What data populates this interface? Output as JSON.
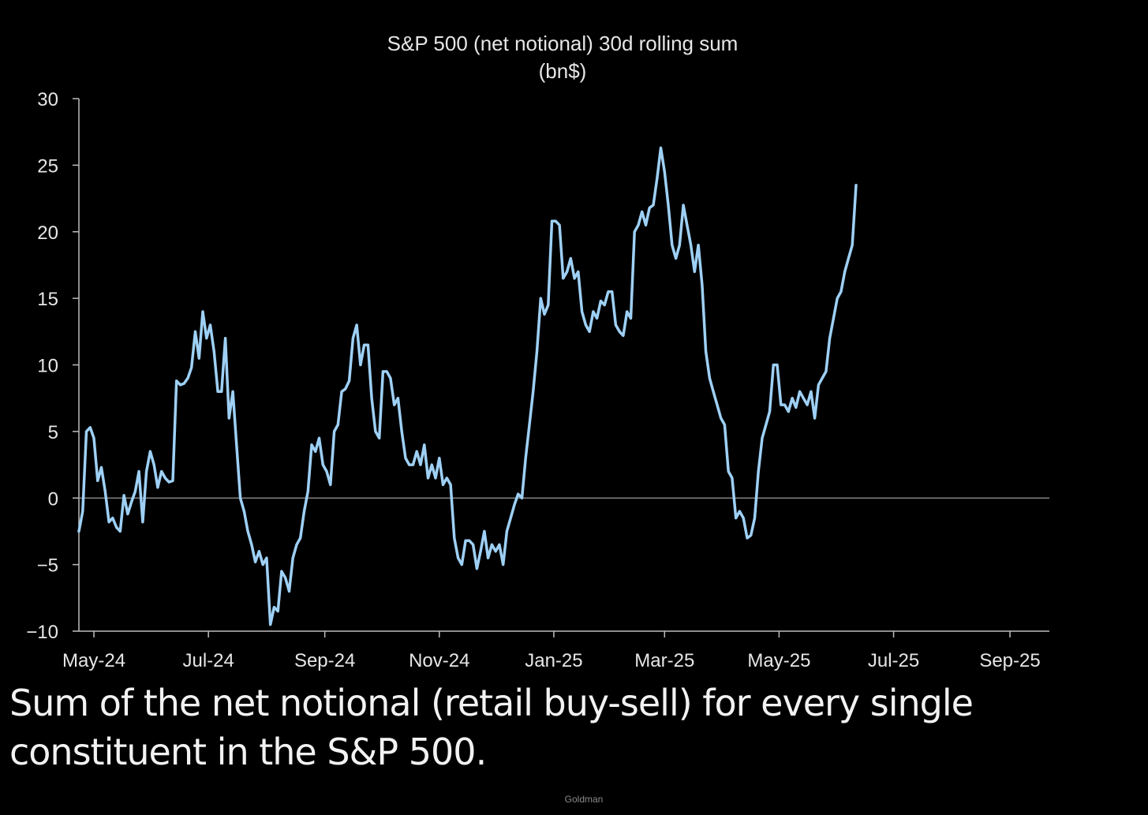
{
  "caption": "Sum of the net notional (retail buy-sell) for every single constituent in the S&P 500.",
  "source_label": "Goldman",
  "colors": {
    "background": "#000000",
    "line": "#9ed0f5",
    "axis": "#bdbdbd",
    "text": "#e6e6e6"
  },
  "chart_data": {
    "type": "line",
    "title": "S&P 500 (net notional) 30d rolling sum",
    "subtitle": "(bn$)",
    "xlabel": "",
    "ylabel": "",
    "ylim": [
      -10,
      30
    ],
    "yticks": [
      30,
      25,
      20,
      15,
      10,
      5,
      0,
      -5,
      -10
    ],
    "x_tick_labels": [
      "May-24",
      "Jul-24",
      "Sep-24",
      "Nov-24",
      "Jan-25",
      "Mar-25",
      "May-25",
      "Jul-25",
      "Sep-25"
    ],
    "x_tick_dates": [
      "2024-05-01",
      "2024-07-01",
      "2024-09-01",
      "2024-11-01",
      "2025-01-01",
      "2025-03-01",
      "2025-05-01",
      "2025-07-01",
      "2025-09-01"
    ],
    "xlim": [
      "2024-04-23",
      "2025-09-22"
    ],
    "zero_line": true,
    "grid": false,
    "legend": "none",
    "series": [
      {
        "points": [
          [
            "2024-04-23",
            -2.5
          ],
          [
            "2024-04-25",
            -1.0
          ],
          [
            "2024-04-27",
            5.0
          ],
          [
            "2024-04-29",
            5.3
          ],
          [
            "2024-05-01",
            4.5
          ],
          [
            "2024-05-03",
            1.3
          ],
          [
            "2024-05-05",
            2.3
          ],
          [
            "2024-05-07",
            0.5
          ],
          [
            "2024-05-09",
            -1.8
          ],
          [
            "2024-05-11",
            -1.5
          ],
          [
            "2024-05-13",
            -2.2
          ],
          [
            "2024-05-15",
            -2.5
          ],
          [
            "2024-05-17",
            0.2
          ],
          [
            "2024-05-19",
            -1.2
          ],
          [
            "2024-05-21",
            -0.3
          ],
          [
            "2024-05-23",
            0.5
          ],
          [
            "2024-05-25",
            2.0
          ],
          [
            "2024-05-27",
            -1.8
          ],
          [
            "2024-05-29",
            2.0
          ],
          [
            "2024-05-31",
            3.5
          ],
          [
            "2024-06-02",
            2.5
          ],
          [
            "2024-06-04",
            0.8
          ],
          [
            "2024-06-06",
            2.0
          ],
          [
            "2024-06-08",
            1.5
          ],
          [
            "2024-06-10",
            1.2
          ],
          [
            "2024-06-12",
            1.3
          ],
          [
            "2024-06-14",
            8.8
          ],
          [
            "2024-06-16",
            8.5
          ],
          [
            "2024-06-18",
            8.6
          ],
          [
            "2024-06-20",
            9.0
          ],
          [
            "2024-06-22",
            9.8
          ],
          [
            "2024-06-24",
            12.5
          ],
          [
            "2024-06-26",
            10.5
          ],
          [
            "2024-06-28",
            14.0
          ],
          [
            "2024-06-30",
            12.0
          ],
          [
            "2024-07-02",
            13.0
          ],
          [
            "2024-07-04",
            11.0
          ],
          [
            "2024-07-06",
            8.0
          ],
          [
            "2024-07-08",
            8.0
          ],
          [
            "2024-07-10",
            12.0
          ],
          [
            "2024-07-12",
            6.0
          ],
          [
            "2024-07-14",
            8.0
          ],
          [
            "2024-07-16",
            4.0
          ],
          [
            "2024-07-18",
            0.0
          ],
          [
            "2024-07-20",
            -1.0
          ],
          [
            "2024-07-22",
            -2.5
          ],
          [
            "2024-07-24",
            -3.5
          ],
          [
            "2024-07-26",
            -4.8
          ],
          [
            "2024-07-28",
            -4.0
          ],
          [
            "2024-07-30",
            -5.0
          ],
          [
            "2024-08-01",
            -4.5
          ],
          [
            "2024-08-03",
            -9.5
          ],
          [
            "2024-08-05",
            -8.2
          ],
          [
            "2024-08-07",
            -8.5
          ],
          [
            "2024-08-09",
            -5.5
          ],
          [
            "2024-08-11",
            -6.0
          ],
          [
            "2024-08-13",
            -7.0
          ],
          [
            "2024-08-15",
            -4.5
          ],
          [
            "2024-08-17",
            -3.5
          ],
          [
            "2024-08-19",
            -3.0
          ],
          [
            "2024-08-21",
            -1.0
          ],
          [
            "2024-08-23",
            0.5
          ],
          [
            "2024-08-25",
            4.0
          ],
          [
            "2024-08-27",
            3.5
          ],
          [
            "2024-08-29",
            4.5
          ],
          [
            "2024-08-31",
            2.5
          ],
          [
            "2024-09-02",
            2.0
          ],
          [
            "2024-09-04",
            1.0
          ],
          [
            "2024-09-06",
            5.0
          ],
          [
            "2024-09-08",
            5.5
          ],
          [
            "2024-09-10",
            8.0
          ],
          [
            "2024-09-12",
            8.2
          ],
          [
            "2024-09-14",
            8.8
          ],
          [
            "2024-09-16",
            12.0
          ],
          [
            "2024-09-18",
            13.0
          ],
          [
            "2024-09-20",
            10.0
          ],
          [
            "2024-09-22",
            11.5
          ],
          [
            "2024-09-24",
            11.5
          ],
          [
            "2024-09-26",
            7.5
          ],
          [
            "2024-09-28",
            5.0
          ],
          [
            "2024-09-30",
            4.5
          ],
          [
            "2024-10-02",
            9.5
          ],
          [
            "2024-10-04",
            9.5
          ],
          [
            "2024-10-06",
            9.0
          ],
          [
            "2024-10-08",
            7.0
          ],
          [
            "2024-10-10",
            7.5
          ],
          [
            "2024-10-12",
            5.0
          ],
          [
            "2024-10-14",
            3.0
          ],
          [
            "2024-10-16",
            2.5
          ],
          [
            "2024-10-18",
            2.5
          ],
          [
            "2024-10-20",
            3.5
          ],
          [
            "2024-10-22",
            2.5
          ],
          [
            "2024-10-24",
            4.0
          ],
          [
            "2024-10-26",
            1.5
          ],
          [
            "2024-10-28",
            2.5
          ],
          [
            "2024-10-30",
            1.5
          ],
          [
            "2024-11-01",
            3.0
          ],
          [
            "2024-11-03",
            1.0
          ],
          [
            "2024-11-05",
            1.5
          ],
          [
            "2024-11-07",
            1.0
          ],
          [
            "2024-11-09",
            -3.0
          ],
          [
            "2024-11-11",
            -4.5
          ],
          [
            "2024-11-13",
            -5.0
          ],
          [
            "2024-11-15",
            -3.2
          ],
          [
            "2024-11-17",
            -3.2
          ],
          [
            "2024-11-19",
            -3.5
          ],
          [
            "2024-11-21",
            -5.3
          ],
          [
            "2024-11-23",
            -4.0
          ],
          [
            "2024-11-25",
            -2.5
          ],
          [
            "2024-11-27",
            -4.5
          ],
          [
            "2024-11-29",
            -3.5
          ],
          [
            "2024-12-01",
            -4.0
          ],
          [
            "2024-12-03",
            -3.5
          ],
          [
            "2024-12-05",
            -5.0
          ],
          [
            "2024-12-07",
            -2.5
          ],
          [
            "2024-12-09",
            -1.5
          ],
          [
            "2024-12-11",
            -0.5
          ],
          [
            "2024-12-13",
            0.3
          ],
          [
            "2024-12-15",
            0.0
          ],
          [
            "2024-12-17",
            3.0
          ],
          [
            "2024-12-19",
            5.5
          ],
          [
            "2024-12-21",
            8.0
          ],
          [
            "2024-12-23",
            11.0
          ],
          [
            "2024-12-25",
            15.0
          ],
          [
            "2024-12-27",
            13.8
          ],
          [
            "2024-12-29",
            14.5
          ],
          [
            "2024-12-31",
            20.8
          ],
          [
            "2025-01-02",
            20.8
          ],
          [
            "2025-01-04",
            20.5
          ],
          [
            "2025-01-06",
            16.5
          ],
          [
            "2025-01-08",
            17.0
          ],
          [
            "2025-01-10",
            18.0
          ],
          [
            "2025-01-12",
            16.5
          ],
          [
            "2025-01-14",
            17.0
          ],
          [
            "2025-01-16",
            14.0
          ],
          [
            "2025-01-18",
            13.0
          ],
          [
            "2025-01-20",
            12.5
          ],
          [
            "2025-01-22",
            14.0
          ],
          [
            "2025-01-24",
            13.5
          ],
          [
            "2025-01-26",
            14.8
          ],
          [
            "2025-01-28",
            14.5
          ],
          [
            "2025-01-30",
            15.5
          ],
          [
            "2025-02-01",
            15.5
          ],
          [
            "2025-02-03",
            13.0
          ],
          [
            "2025-02-05",
            12.5
          ],
          [
            "2025-02-07",
            12.2
          ],
          [
            "2025-02-09",
            14.0
          ],
          [
            "2025-02-11",
            13.5
          ],
          [
            "2025-02-13",
            20.0
          ],
          [
            "2025-02-15",
            20.5
          ],
          [
            "2025-02-17",
            21.5
          ],
          [
            "2025-02-19",
            20.5
          ],
          [
            "2025-02-21",
            21.8
          ],
          [
            "2025-02-23",
            22.0
          ],
          [
            "2025-02-25",
            24.0
          ],
          [
            "2025-02-27",
            26.3
          ],
          [
            "2025-03-01",
            24.5
          ],
          [
            "2025-03-03",
            22.0
          ],
          [
            "2025-03-05",
            19.0
          ],
          [
            "2025-03-07",
            18.0
          ],
          [
            "2025-03-09",
            19.0
          ],
          [
            "2025-03-11",
            22.0
          ],
          [
            "2025-03-13",
            20.5
          ],
          [
            "2025-03-15",
            19.0
          ],
          [
            "2025-03-17",
            17.0
          ],
          [
            "2025-03-19",
            19.0
          ],
          [
            "2025-03-21",
            16.0
          ],
          [
            "2025-03-23",
            11.0
          ],
          [
            "2025-03-25",
            9.0
          ],
          [
            "2025-03-27",
            8.0
          ],
          [
            "2025-03-29",
            7.0
          ],
          [
            "2025-03-31",
            6.0
          ],
          [
            "2025-04-02",
            5.5
          ],
          [
            "2025-04-04",
            2.0
          ],
          [
            "2025-04-06",
            1.5
          ],
          [
            "2025-04-08",
            -1.5
          ],
          [
            "2025-04-10",
            -1.0
          ],
          [
            "2025-04-12",
            -1.5
          ],
          [
            "2025-04-14",
            -3.0
          ],
          [
            "2025-04-16",
            -2.8
          ],
          [
            "2025-04-18",
            -1.5
          ],
          [
            "2025-04-20",
            2.0
          ],
          [
            "2025-04-22",
            4.5
          ],
          [
            "2025-04-24",
            5.5
          ],
          [
            "2025-04-26",
            6.5
          ],
          [
            "2025-04-28",
            10.0
          ],
          [
            "2025-04-30",
            10.0
          ],
          [
            "2025-05-02",
            7.0
          ],
          [
            "2025-05-04",
            7.0
          ],
          [
            "2025-05-06",
            6.5
          ],
          [
            "2025-05-08",
            7.5
          ],
          [
            "2025-05-10",
            6.8
          ],
          [
            "2025-05-12",
            8.0
          ],
          [
            "2025-05-14",
            7.5
          ],
          [
            "2025-05-16",
            7.0
          ],
          [
            "2025-05-18",
            8.0
          ],
          [
            "2025-05-20",
            6.0
          ],
          [
            "2025-05-22",
            8.5
          ],
          [
            "2025-05-24",
            9.0
          ],
          [
            "2025-05-26",
            9.5
          ],
          [
            "2025-05-28",
            12.0
          ],
          [
            "2025-05-30",
            13.5
          ],
          [
            "2025-06-01",
            15.0
          ],
          [
            "2025-06-03",
            15.5
          ],
          [
            "2025-06-05",
            17.0
          ],
          [
            "2025-06-07",
            18.0
          ],
          [
            "2025-06-09",
            19.0
          ],
          [
            "2025-06-11",
            23.5
          ]
        ]
      }
    ]
  }
}
